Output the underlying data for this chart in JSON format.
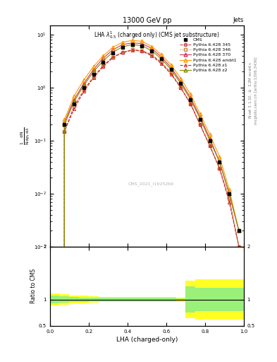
{
  "title_top": "13000 GeV pp",
  "title_right": "Jets",
  "plot_title": "LHA $\\lambda^{1}_{0.5}$ (charged only) (CMS jet substructure)",
  "xlabel": "LHA (charged-only)",
  "ylabel_left": "$\\frac{1}{\\mathrm{N}} \\frac{\\mathrm{d}\\mathrm{N}}{\\mathrm{d}p_{\\mathrm{T}}\\,\\mathrm{d}\\lambda}$",
  "ylabel_ratio": "Ratio to CMS",
  "right_label_top": "Rivet 3.1.10, $\\geq$ 3.2M events",
  "right_label_bottom": "mcplots.cern.ch [arXiv:1306.3436]",
  "watermark": "CMS_2021_I1925269",
  "x_data": [
    0.0,
    0.05,
    0.1,
    0.15,
    0.2,
    0.25,
    0.3,
    0.35,
    0.4,
    0.45,
    0.5,
    0.55,
    0.6,
    0.65,
    0.7,
    0.75,
    0.8,
    0.85,
    0.9,
    0.95,
    1.0
  ],
  "cms_y": [
    0.0,
    0.2,
    0.5,
    1.0,
    1.8,
    3.0,
    4.5,
    5.8,
    6.5,
    6.2,
    5.0,
    3.5,
    2.2,
    1.2,
    0.6,
    0.25,
    0.1,
    0.04,
    0.01,
    0.002,
    0.0
  ],
  "p345_y": [
    0.0,
    0.15,
    0.45,
    0.9,
    1.6,
    2.6,
    3.8,
    4.6,
    5.2,
    5.0,
    4.2,
    3.0,
    1.9,
    1.0,
    0.5,
    0.2,
    0.08,
    0.03,
    0.008,
    0.001,
    0.0
  ],
  "p346_y": [
    0.0,
    0.15,
    0.45,
    0.9,
    1.6,
    2.6,
    3.8,
    4.6,
    5.2,
    5.0,
    4.2,
    3.0,
    1.9,
    1.0,
    0.5,
    0.2,
    0.08,
    0.03,
    0.008,
    0.001,
    0.0
  ],
  "p370_y": [
    0.0,
    0.22,
    0.6,
    1.2,
    2.2,
    3.6,
    5.2,
    6.5,
    7.0,
    6.8,
    5.5,
    3.8,
    2.4,
    1.3,
    0.65,
    0.28,
    0.11,
    0.04,
    0.01,
    0.002,
    0.0
  ],
  "pambt1_y": [
    0.0,
    0.25,
    0.7,
    1.4,
    2.5,
    4.0,
    5.8,
    7.2,
    7.8,
    7.5,
    6.0,
    4.2,
    2.7,
    1.5,
    0.75,
    0.32,
    0.13,
    0.05,
    0.012,
    0.002,
    0.0
  ],
  "pz1_y": [
    0.0,
    0.15,
    0.4,
    0.85,
    1.55,
    2.5,
    3.7,
    4.6,
    5.1,
    4.9,
    4.0,
    2.85,
    1.8,
    1.0,
    0.5,
    0.2,
    0.08,
    0.03,
    0.007,
    0.001,
    0.0
  ],
  "pz2_y": [
    0.0,
    0.2,
    0.55,
    1.1,
    2.0,
    3.2,
    4.7,
    5.9,
    6.5,
    6.2,
    5.0,
    3.5,
    2.2,
    1.2,
    0.6,
    0.26,
    0.1,
    0.04,
    0.01,
    0.002,
    0.0
  ],
  "ratio_x": [
    0.0,
    0.05,
    0.1,
    0.15,
    0.2,
    0.25,
    0.3,
    0.35,
    0.4,
    0.45,
    0.5,
    0.55,
    0.6,
    0.65,
    0.7,
    0.75,
    0.8,
    0.85,
    0.9,
    0.95,
    1.0
  ],
  "ratio_yellow_low": [
    0.88,
    0.9,
    0.92,
    0.93,
    0.94,
    0.95,
    0.95,
    0.95,
    0.95,
    0.95,
    0.95,
    0.95,
    0.95,
    0.96,
    0.65,
    0.62,
    0.62,
    0.62,
    0.62,
    0.62,
    0.62
  ],
  "ratio_yellow_high": [
    1.12,
    1.1,
    1.08,
    1.07,
    1.06,
    1.05,
    1.05,
    1.05,
    1.05,
    1.05,
    1.05,
    1.05,
    1.05,
    1.04,
    1.35,
    1.38,
    1.38,
    1.38,
    1.38,
    1.38,
    1.38
  ],
  "ratio_green_low": [
    0.92,
    0.94,
    0.95,
    0.96,
    0.97,
    0.97,
    0.97,
    0.97,
    0.97,
    0.97,
    0.97,
    0.97,
    0.97,
    0.98,
    0.75,
    0.78,
    0.78,
    0.78,
    0.78,
    0.78,
    0.78
  ],
  "ratio_green_high": [
    1.08,
    1.06,
    1.05,
    1.04,
    1.03,
    1.03,
    1.03,
    1.03,
    1.03,
    1.03,
    1.03,
    1.03,
    1.03,
    1.02,
    1.25,
    1.22,
    1.22,
    1.22,
    1.22,
    1.22,
    1.22
  ],
  "colors": {
    "cms": "#000000",
    "p345": "#cc4444",
    "p346": "#cc8844",
    "p370": "#cc3366",
    "pambt1": "#ff9900",
    "pz1": "#cc2222",
    "pz2": "#888800"
  },
  "ylim_log": [
    0.001,
    15.0
  ],
  "xlim": [
    0.0,
    1.0
  ],
  "ratio_ylim": [
    0.5,
    2.0
  ]
}
